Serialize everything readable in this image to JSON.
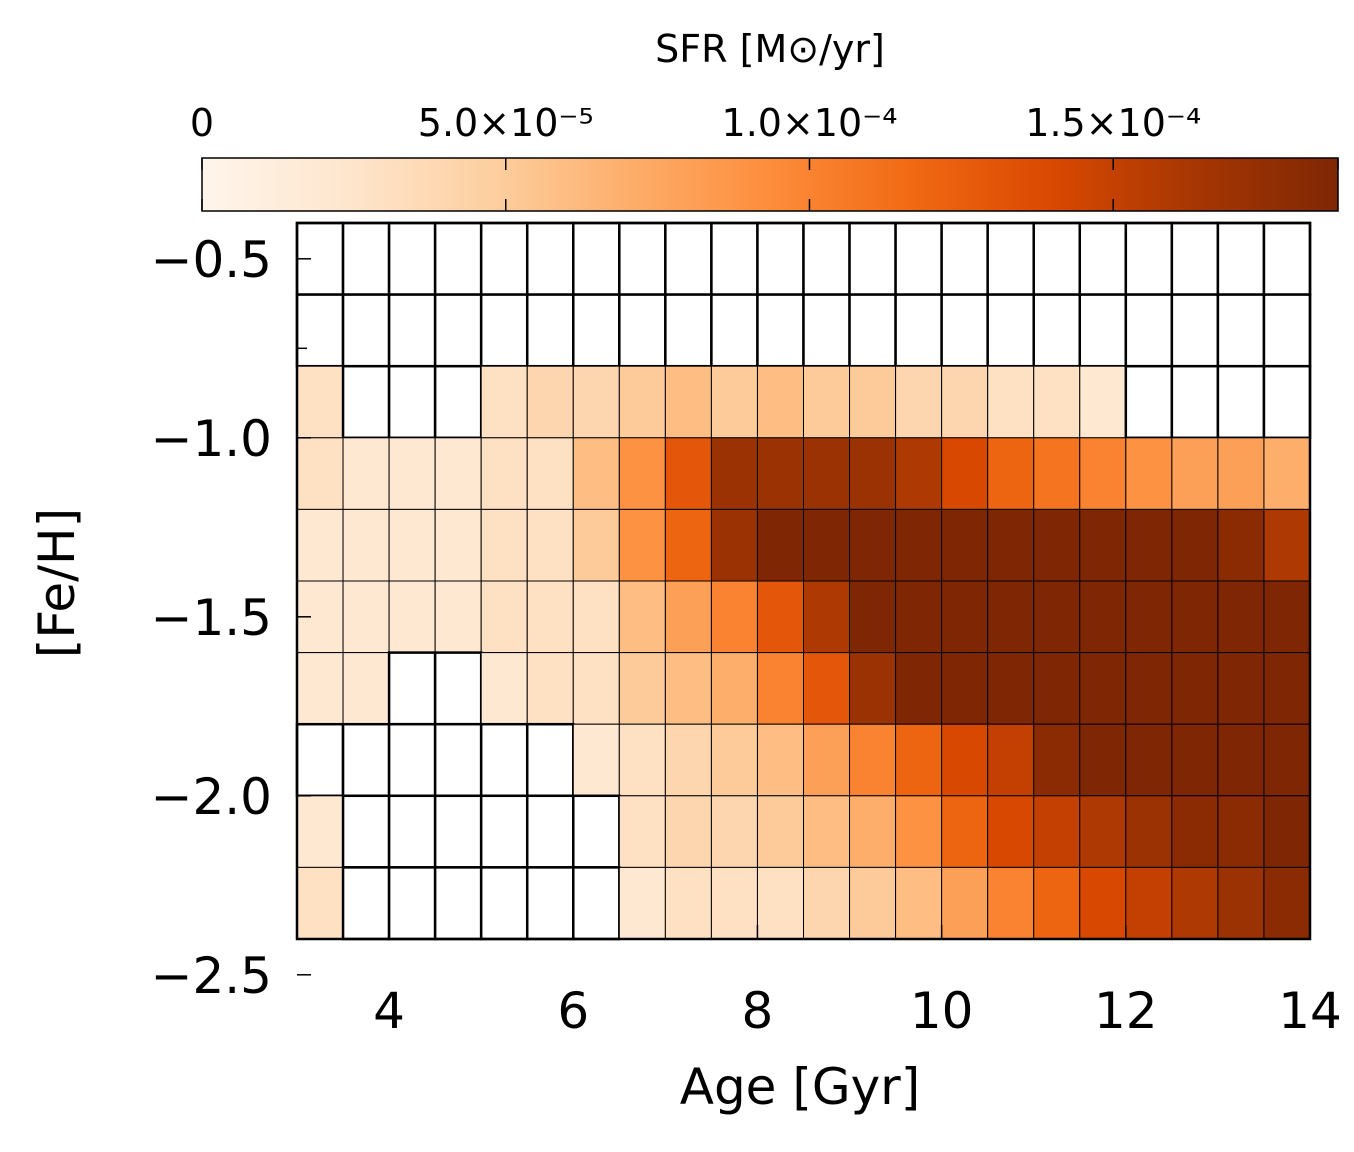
{
  "chart_data": {
    "type": "heatmap",
    "title": "SFR [M⊙/yr]",
    "xlabel": "Age [Gyr]",
    "ylabel": "[Fe/H]",
    "x_ticks": [
      "4",
      "6",
      "8",
      "10",
      "12",
      "14"
    ],
    "y_ticks": [
      "−0.5",
      "−1.0",
      "−1.5",
      "−2.0",
      "−2.5"
    ],
    "x_tick_values": [
      4,
      6,
      8,
      10,
      12,
      14
    ],
    "y_tick_values": [
      -0.5,
      -1.0,
      -1.5,
      -2.0,
      -2.5
    ],
    "xlim": [
      3.0,
      14.0
    ],
    "ylim": [
      -2.5,
      -0.5
    ],
    "x_bin_edges_start": 3.0,
    "x_bin_width": 0.5,
    "y_bin_edges_top": -0.4,
    "y_bin_width": 0.2,
    "n_cols": 22,
    "n_rows": 10,
    "colorbar": {
      "label": "SFR [M⊙/yr]",
      "tick_labels": [
        "0",
        "5.0×10⁻⁵",
        "1.0×10⁻⁴",
        "1.5×10⁻⁴"
      ],
      "tick_values": [
        0,
        5e-05,
        0.0001,
        0.00015
      ],
      "range": [
        0,
        0.000187
      ],
      "colormap": [
        "#fff5eb",
        "#fee6ce",
        "#fdd0a2",
        "#fdae6b",
        "#fd8d3c",
        "#f16913",
        "#d94801",
        "#a63603",
        "#7f2704"
      ]
    },
    "values_x1e-5": [
      [
        null,
        null,
        null,
        null,
        null,
        null,
        null,
        null,
        null,
        null,
        null,
        null,
        null,
        null,
        null,
        null,
        null,
        null,
        null,
        null,
        null,
        null
      ],
      [
        null,
        null,
        null,
        null,
        null,
        null,
        null,
        null,
        null,
        null,
        null,
        null,
        null,
        null,
        null,
        null,
        null,
        null,
        null,
        null,
        null,
        null
      ],
      [
        3,
        null,
        null,
        null,
        3,
        4,
        4,
        5,
        6,
        5,
        6,
        5,
        5,
        4,
        4,
        3,
        3,
        2,
        null,
        null,
        null,
        null
      ],
      [
        3,
        2,
        2,
        2,
        3,
        3,
        6,
        9,
        13,
        17,
        17,
        17,
        17,
        16,
        14,
        12,
        11,
        10,
        9,
        8,
        8,
        7
      ],
      [
        2,
        2,
        2,
        2,
        3,
        3,
        5,
        9,
        12,
        17,
        19,
        21,
        22,
        23,
        24,
        25,
        24,
        23,
        21,
        20,
        18,
        16
      ],
      [
        2,
        2,
        2,
        2,
        3,
        3,
        3,
        6,
        8,
        10,
        13,
        16,
        19,
        22,
        31,
        33,
        32,
        30,
        34,
        37,
        31,
        28
      ],
      [
        2,
        2,
        null,
        null,
        2,
        3,
        3,
        5,
        6,
        7,
        10,
        13,
        17,
        21,
        24,
        27,
        29,
        30,
        31,
        32,
        29,
        26
      ],
      [
        null,
        null,
        null,
        null,
        null,
        null,
        2,
        3,
        4,
        5,
        6,
        8,
        10,
        12,
        14,
        15,
        18,
        19,
        21,
        22,
        21,
        23
      ],
      [
        2,
        null,
        null,
        null,
        null,
        null,
        null,
        3,
        4,
        4,
        5,
        6,
        7,
        9,
        12,
        14,
        15,
        16,
        17,
        18,
        18,
        19
      ],
      [
        3,
        null,
        null,
        null,
        null,
        null,
        null,
        2,
        3,
        3,
        3,
        4,
        5,
        6,
        8,
        10,
        12,
        14,
        15,
        16,
        17,
        18
      ]
    ]
  }
}
